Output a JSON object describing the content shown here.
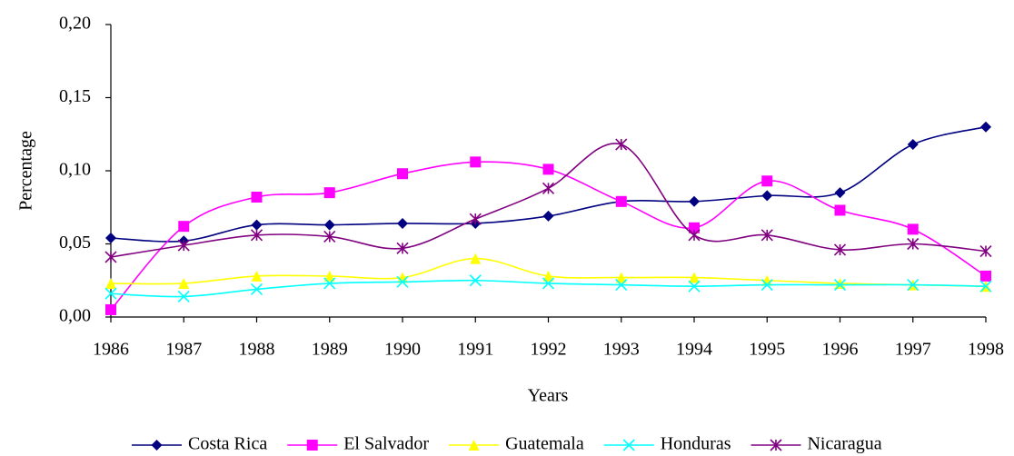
{
  "chart_data": {
    "type": "line",
    "x_label": "Years",
    "y_label": "Percentage",
    "categories": [
      "1986",
      "1987",
      "1988",
      "1989",
      "1990",
      "1991",
      "1992",
      "1993",
      "1994",
      "1995",
      "1996",
      "1997",
      "1998"
    ],
    "series": [
      {
        "name": "Costa Rica",
        "color": "#000080",
        "marker": "diamond",
        "values": [
          0.054,
          0.052,
          0.063,
          0.063,
          0.064,
          0.064,
          0.069,
          0.079,
          0.079,
          0.083,
          0.085,
          0.118,
          0.13
        ]
      },
      {
        "name": "El Salvador",
        "color": "#ff00ff",
        "marker": "square",
        "values": [
          0.005,
          0.062,
          0.082,
          0.085,
          0.098,
          0.106,
          0.101,
          0.079,
          0.061,
          0.093,
          0.073,
          0.06,
          0.028
        ]
      },
      {
        "name": "Guatemala",
        "color": "#ffff00",
        "marker": "triangle",
        "values": [
          0.023,
          0.023,
          0.028,
          0.028,
          0.027,
          0.04,
          0.028,
          0.027,
          0.027,
          0.025,
          0.023,
          0.022,
          0.021
        ]
      },
      {
        "name": "Honduras",
        "color": "#00ffff",
        "marker": "x",
        "values": [
          0.016,
          0.014,
          0.019,
          0.023,
          0.024,
          0.025,
          0.023,
          0.022,
          0.021,
          0.022,
          0.022,
          0.022,
          0.021
        ]
      },
      {
        "name": "Nicaragua",
        "color": "#800080",
        "marker": "star",
        "values": [
          0.041,
          0.049,
          0.056,
          0.055,
          0.047,
          0.067,
          0.088,
          0.118,
          0.056,
          0.056,
          0.046,
          0.05,
          0.045
        ]
      }
    ],
    "ylim": [
      0,
      0.2
    ],
    "yticks": [
      {
        "value": 0,
        "label": "0,00"
      },
      {
        "value": 0.05,
        "label": "0,05"
      },
      {
        "value": 0.1,
        "label": "0,10"
      },
      {
        "value": 0.15,
        "label": "0,15"
      },
      {
        "value": 0.2,
        "label": "0,20"
      }
    ],
    "legend": "bottom"
  }
}
